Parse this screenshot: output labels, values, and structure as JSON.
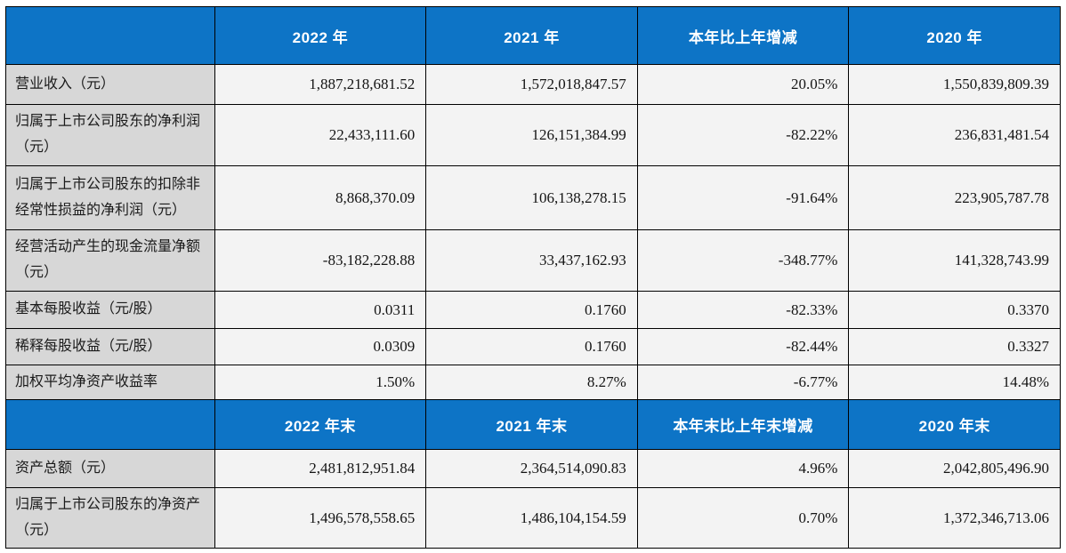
{
  "colors": {
    "header_blue": "#0d74c6",
    "label_column_bg": "#d7d7d7",
    "value_cell_bg": "#f3f3f3",
    "border": "#000000",
    "header_text": "#ffffff"
  },
  "annual": {
    "header": [
      "2022 年",
      "2021 年",
      "本年比上年增减",
      "2020 年"
    ],
    "rows": [
      {
        "label": "营业收入（元）",
        "values": [
          "1,887,218,681.52",
          "1,572,018,847.57",
          "20.05%",
          "1,550,839,809.39"
        ]
      },
      {
        "label": "归属于上市公司股东的净利润（元）",
        "values": [
          "22,433,111.60",
          "126,151,384.99",
          "-82.22%",
          "236,831,481.54"
        ]
      },
      {
        "label": "归属于上市公司股东的扣除非经常性损益的净利润（元）",
        "values": [
          "8,868,370.09",
          "106,138,278.15",
          "-91.64%",
          "223,905,787.78"
        ]
      },
      {
        "label": "经营活动产生的现金流量净额（元）",
        "values": [
          "-83,182,228.88",
          "33,437,162.93",
          "-348.77%",
          "141,328,743.99"
        ]
      },
      {
        "label": "基本每股收益（元/股）",
        "values": [
          "0.0311",
          "0.1760",
          "-82.33%",
          "0.3370"
        ]
      },
      {
        "label": "稀释每股收益（元/股）",
        "values": [
          "0.0309",
          "0.1760",
          "-82.44%",
          "0.3327"
        ]
      },
      {
        "label": "加权平均净资产收益率",
        "values": [
          "1.50%",
          "8.27%",
          "-6.77%",
          "14.48%"
        ]
      }
    ]
  },
  "yearend": {
    "header": [
      "2022 年末",
      "2021 年末",
      "本年末比上年末增减",
      "2020 年末"
    ],
    "rows": [
      {
        "label": "资产总额（元）",
        "values": [
          "2,481,812,951.84",
          "2,364,514,090.83",
          "4.96%",
          "2,042,805,496.90"
        ]
      },
      {
        "label": "归属于上市公司股东的净资产（元）",
        "values": [
          "1,496,578,558.65",
          "1,486,104,154.59",
          "0.70%",
          "1,372,346,713.06"
        ]
      }
    ]
  }
}
